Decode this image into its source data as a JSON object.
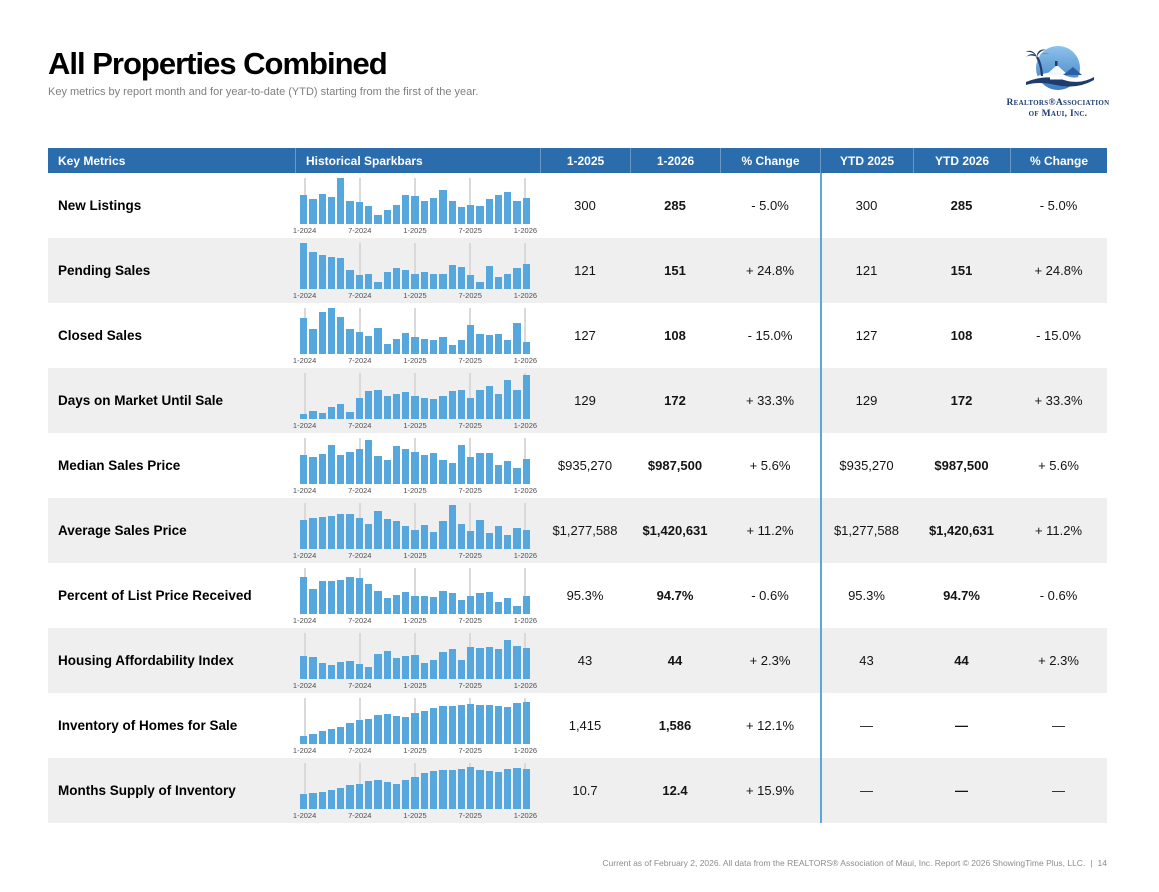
{
  "page": {
    "title": "All Properties Combined",
    "subtitle": "Key metrics by report month and for year-to-date (YTD) starting from the first of the year.",
    "footer": "Current as of February 2, 2026. All data from the REALTORS® Association of Maui, Inc. Report © 2026 ShowingTime Plus, LLC.",
    "page_number": "14"
  },
  "logo": {
    "line1": "Realtors®Association",
    "line2": "of Maui, Inc."
  },
  "colors": {
    "header_bg": "#2b6cad",
    "bar_blue": "#55a7de",
    "alt_row": "#efefef",
    "gridline": "#d9d9d9",
    "ytd_divider": "#5aa7d8"
  },
  "table": {
    "headers": [
      "Key Metrics",
      "Historical Sparkbars",
      "1-2025",
      "1-2026",
      "% Change",
      "YTD 2025",
      "YTD 2026",
      "% Change"
    ],
    "sparkline_ticks": [
      "1-2024",
      "7-2024",
      "1-2025",
      "7-2025",
      "1-2026"
    ],
    "rows": [
      {
        "metric": "New Listings",
        "m2025": "300",
        "m2026": "285",
        "m_change": "- 5.0%",
        "ytd2025": "300",
        "ytd2026": "285",
        "ytd_change": "- 5.0%",
        "bars": [
          0.62,
          0.55,
          0.66,
          0.58,
          1.0,
          0.5,
          0.47,
          0.4,
          0.2,
          0.3,
          0.42,
          0.62,
          0.6,
          0.5,
          0.57,
          0.73,
          0.5,
          0.37,
          0.42,
          0.4,
          0.55,
          0.63,
          0.7,
          0.5,
          0.57
        ]
      },
      {
        "metric": "Pending Sales",
        "m2025": "121",
        "m2026": "151",
        "m_change": "+ 24.8%",
        "ytd2025": "121",
        "ytd2026": "151",
        "ytd_change": "+ 24.8%",
        "bars": [
          1.0,
          0.8,
          0.73,
          0.7,
          0.68,
          0.42,
          0.3,
          0.33,
          0.15,
          0.36,
          0.45,
          0.42,
          0.33,
          0.37,
          0.33,
          0.33,
          0.52,
          0.48,
          0.3,
          0.15,
          0.5,
          0.25,
          0.33,
          0.45,
          0.55
        ]
      },
      {
        "metric": "Closed Sales",
        "m2025": "127",
        "m2026": "108",
        "m_change": "- 15.0%",
        "ytd2025": "127",
        "ytd2026": "108",
        "ytd_change": "- 15.0%",
        "bars": [
          0.78,
          0.55,
          0.92,
          1.0,
          0.8,
          0.55,
          0.47,
          0.4,
          0.56,
          0.22,
          0.32,
          0.45,
          0.36,
          0.33,
          0.31,
          0.36,
          0.2,
          0.3,
          0.62,
          0.44,
          0.42,
          0.44,
          0.3,
          0.68,
          0.26
        ]
      },
      {
        "metric": "Days on Market Until Sale",
        "m2025": "129",
        "m2026": "172",
        "m_change": "+ 33.3%",
        "ytd2025": "129",
        "ytd2026": "172",
        "ytd_change": "+ 33.3%",
        "bars": [
          0.1,
          0.17,
          0.12,
          0.27,
          0.33,
          0.15,
          0.45,
          0.6,
          0.62,
          0.5,
          0.55,
          0.58,
          0.5,
          0.45,
          0.44,
          0.5,
          0.6,
          0.62,
          0.45,
          0.62,
          0.72,
          0.55,
          0.85,
          0.62,
          0.95
        ]
      },
      {
        "metric": "Median Sales Price",
        "m2025": "$935,270",
        "m2026": "$987,500",
        "m_change": "+ 5.6%",
        "ytd2025": "$935,270",
        "ytd2026": "$987,500",
        "ytd_change": "+ 5.6%",
        "bars": [
          0.62,
          0.58,
          0.66,
          0.85,
          0.62,
          0.7,
          0.76,
          0.95,
          0.6,
          0.52,
          0.82,
          0.75,
          0.7,
          0.62,
          0.68,
          0.52,
          0.45,
          0.85,
          0.58,
          0.68,
          0.68,
          0.42,
          0.5,
          0.35,
          0.55
        ]
      },
      {
        "metric": "Average Sales Price",
        "m2025": "$1,277,588",
        "m2026": "$1,420,631",
        "m_change": "+ 11.2%",
        "ytd2025": "$1,277,588",
        "ytd2026": "$1,420,631",
        "ytd_change": "+ 11.2%",
        "bars": [
          0.62,
          0.68,
          0.7,
          0.72,
          0.75,
          0.75,
          0.68,
          0.55,
          0.82,
          0.65,
          0.6,
          0.5,
          0.42,
          0.52,
          0.38,
          0.6,
          0.95,
          0.55,
          0.4,
          0.62,
          0.35,
          0.5,
          0.3,
          0.45,
          0.42
        ]
      },
      {
        "metric": "Percent of List Price Received",
        "m2025": "95.3%",
        "m2026": "94.7%",
        "m_change": "- 0.6%",
        "ytd2025": "95.3%",
        "ytd2026": "94.7%",
        "ytd_change": "- 0.6%",
        "bars": [
          0.8,
          0.55,
          0.72,
          0.72,
          0.73,
          0.8,
          0.78,
          0.65,
          0.5,
          0.35,
          0.42,
          0.48,
          0.4,
          0.4,
          0.38,
          0.5,
          0.45,
          0.3,
          0.4,
          0.45,
          0.48,
          0.25,
          0.35,
          0.18,
          0.4
        ]
      },
      {
        "metric": "Housing Affordability Index",
        "m2025": "43",
        "m2026": "44",
        "m_change": "+ 2.3%",
        "ytd2025": "43",
        "ytd2026": "44",
        "ytd_change": "+ 2.3%",
        "bars": [
          0.5,
          0.48,
          0.35,
          0.3,
          0.38,
          0.4,
          0.32,
          0.25,
          0.55,
          0.6,
          0.45,
          0.5,
          0.52,
          0.35,
          0.42,
          0.58,
          0.65,
          0.42,
          0.7,
          0.68,
          0.7,
          0.65,
          0.85,
          0.72,
          0.68
        ]
      },
      {
        "metric": "Inventory of Homes for Sale",
        "m2025": "1,415",
        "m2026": "1,586",
        "m_change": "+ 12.1%",
        "ytd2025": "—",
        "ytd2026": "—",
        "ytd_change": "—",
        "bars": [
          0.18,
          0.22,
          0.28,
          0.32,
          0.38,
          0.45,
          0.52,
          0.55,
          0.62,
          0.65,
          0.6,
          0.58,
          0.68,
          0.72,
          0.78,
          0.82,
          0.82,
          0.85,
          0.88,
          0.85,
          0.85,
          0.82,
          0.8,
          0.9,
          0.92
        ]
      },
      {
        "metric": "Months Supply of Inventory",
        "m2025": "10.7",
        "m2026": "12.4",
        "m_change": "+ 15.9%",
        "ytd2025": "—",
        "ytd2026": "—",
        "ytd_change": "—",
        "bars": [
          0.32,
          0.35,
          0.38,
          0.42,
          0.45,
          0.52,
          0.55,
          0.6,
          0.62,
          0.58,
          0.55,
          0.62,
          0.7,
          0.78,
          0.82,
          0.85,
          0.85,
          0.88,
          0.92,
          0.85,
          0.82,
          0.8,
          0.88,
          0.9,
          0.88
        ]
      }
    ]
  }
}
